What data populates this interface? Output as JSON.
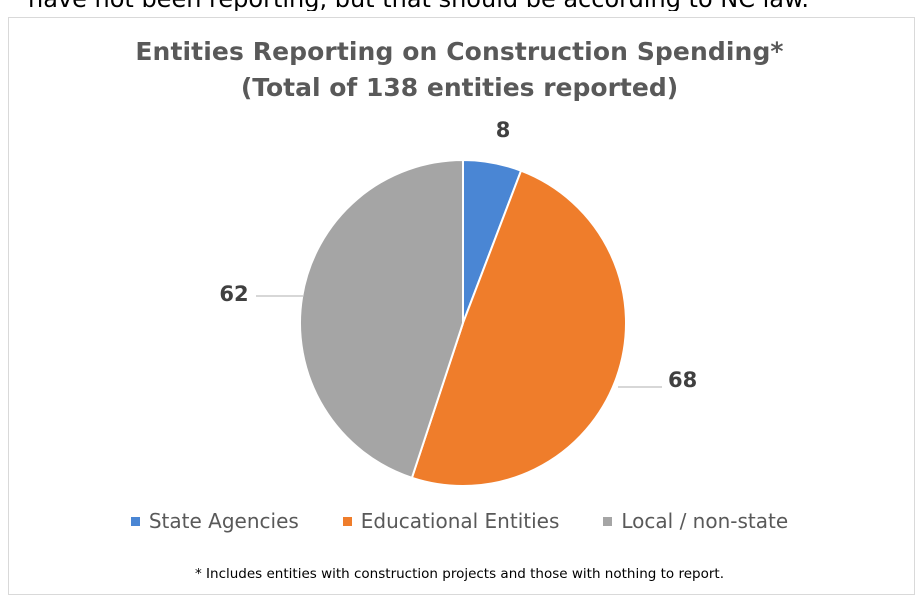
{
  "page": {
    "top_text": "have not been reporting, but that should be according to NC law."
  },
  "chart_data": {
    "type": "pie",
    "title": "Entities Reporting on Construction Spending*",
    "subtitle": "(Total of 138 entities reported)",
    "categories": [
      "State Agencies",
      "Educational Entities",
      "Local / non-state"
    ],
    "values": [
      8,
      68,
      62
    ],
    "data_labels": [
      "8",
      "68",
      "62"
    ],
    "colors": [
      "#4a86d4",
      "#ef7d2b",
      "#a5a5a5"
    ],
    "start_angle_deg": 0,
    "direction": "clockwise",
    "legend_position": "bottom",
    "footnote": "* Includes entities with construction projects and those with nothing to report."
  }
}
